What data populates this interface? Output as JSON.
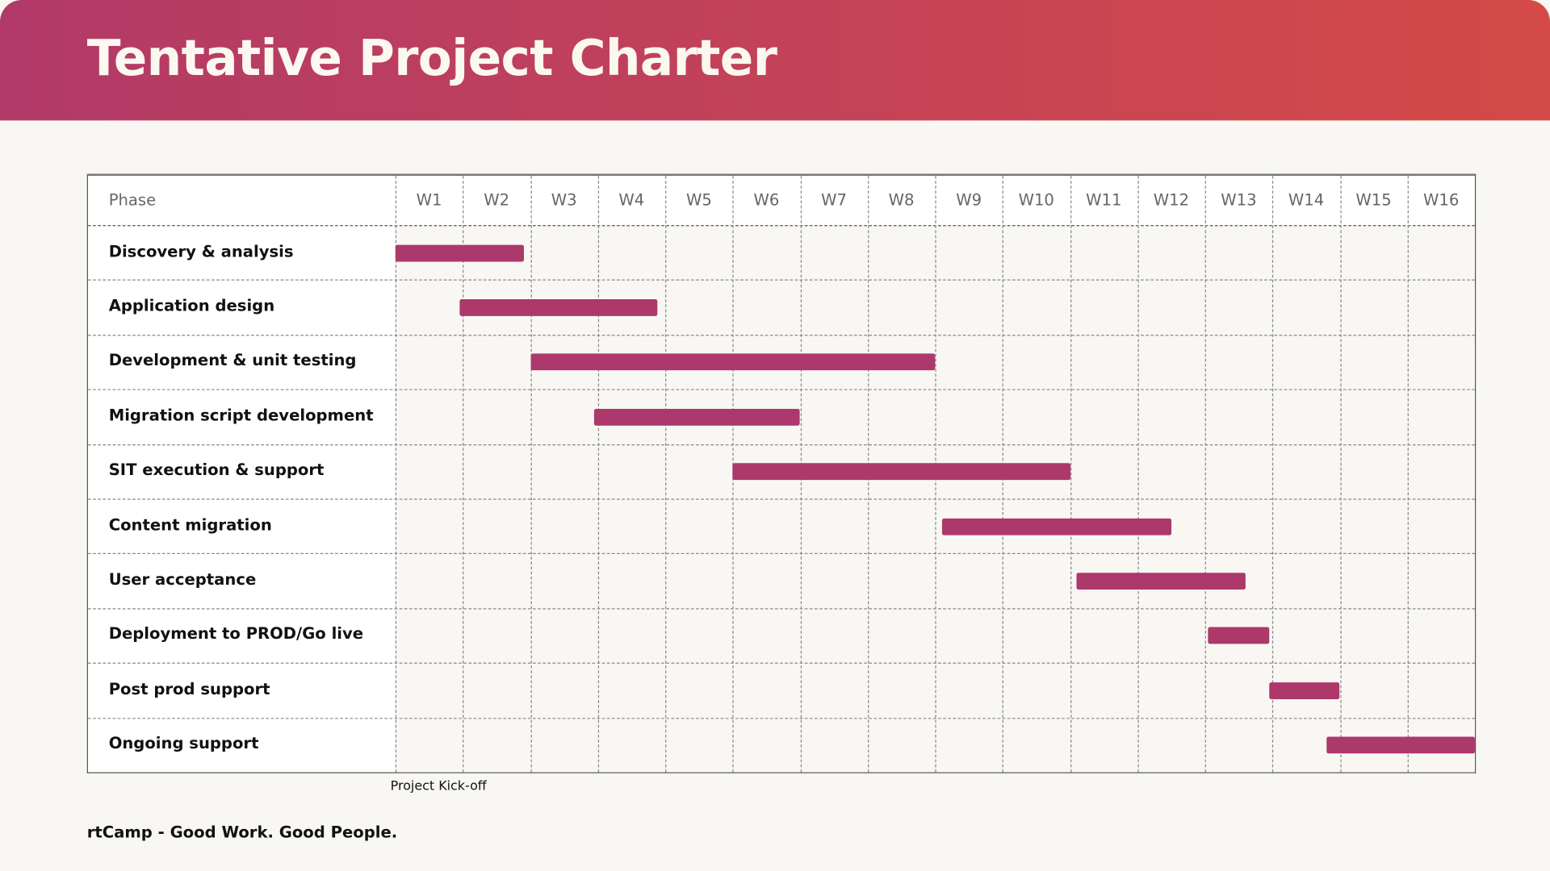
{
  "header": {
    "title": "Tentative Project Charter"
  },
  "colors": {
    "header_start": "#b23a68",
    "header_end": "#d44a48",
    "bar": "#ad386b"
  },
  "chart_data": {
    "type": "gantt",
    "phase_header": "Phase",
    "weeks": [
      "W1",
      "W2",
      "W3",
      "W4",
      "W5",
      "W6",
      "W7",
      "W8",
      "W9",
      "W10",
      "W11",
      "W12",
      "W13",
      "W14",
      "W15",
      "W16"
    ],
    "tasks": [
      {
        "name": "Discovery & analysis",
        "start": 0,
        "end": 1.9
      },
      {
        "name": "Application design",
        "start": 0.95,
        "end": 3.88
      },
      {
        "name": "Development & unit testing",
        "start": 2.0,
        "end": 8.0
      },
      {
        "name": "Migration script development",
        "start": 2.95,
        "end": 6.0
      },
      {
        "name": "SIT execution & support",
        "start": 5.0,
        "end": 10.0
      },
      {
        "name": "Content migration",
        "start": 8.1,
        "end": 11.5
      },
      {
        "name": "User acceptance",
        "start": 10.1,
        "end": 12.6
      },
      {
        "name": "Deployment to PROD/Go live",
        "start": 12.05,
        "end": 12.95
      },
      {
        "name": "Post prod support",
        "start": 12.95,
        "end": 14.0
      },
      {
        "name": "Ongoing support",
        "start": 13.8,
        "end": 16.0
      }
    ],
    "annotation": "Project Kick-off"
  },
  "footer": {
    "text": "rtCamp - Good Work. Good People."
  }
}
